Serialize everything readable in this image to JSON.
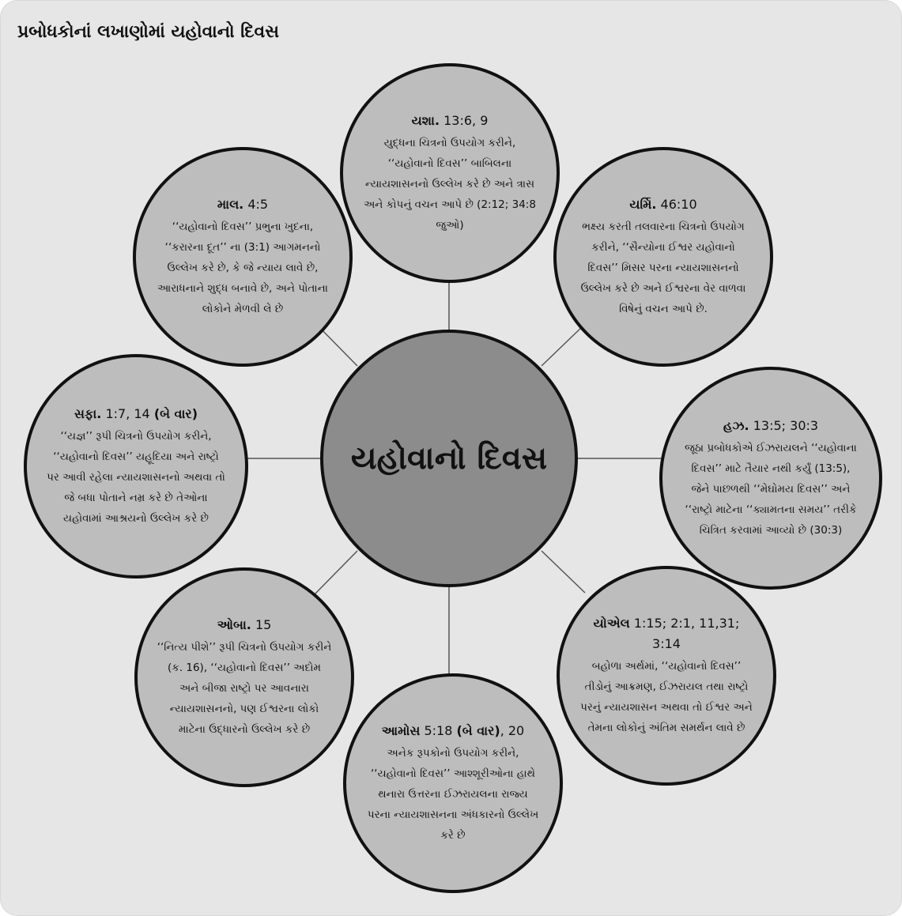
{
  "title": "પ્રબોધકોનાં લખાણોમાં યહોવાનો દિવસ",
  "center": {
    "label": "યહોવાનો દિવસ"
  },
  "nodes": [
    {
      "id": "isaiah",
      "book": "યશા.",
      "verses": "13:6, 9",
      "text": "યુદ્ધના ચિત્રનો ઉપયોગ કરીને, ‘‘યહોવાનો દિવસ’’ બાબિલના ન્યાયશાસનનો ઉલ્લેખ કરે છે અને ત્રાસ અને કોપનું વચન આપે છે (2:12; 34:8 જુઓ)"
    },
    {
      "id": "jeremiah",
      "book": "યર્મિ.",
      "verses": "46:10",
      "text": "ભક્ષ્ય કરતી તલવારના ચિત્રનો ઉપયોગ કરીને, ‘‘સૈન્યોના ઈશ્વર યહોવાનો દિવસ’’ મિસર પરના ન્યાયશાસનનો ઉલ્લેખ કરે છે અને ઈશ્વરના વેર વાળવા વિષેનું વચન આપે છે."
    },
    {
      "id": "ezekiel",
      "book": "હઝ.",
      "verses": "13:5; 30:3",
      "text": "જૂઠા પ્રબોધકોએ ઈઝરાયલને ‘‘યહોવાના દિવસ’’ માટે તૈયાર નથી કર્યું (13:5), જેને પાછળથી ‘‘મેઘોમય દિવસ’’ અને ‘‘રાષ્ટ્રો માટેના ‘‘ક્યામતના સમય’’ તરીકે ચિત્રિત કરવામાં આવ્યો છે (30:3)"
    },
    {
      "id": "joel",
      "book": "યોએલ",
      "verses": "1:15; 2:1, 11,31; 3:14",
      "text": "બહોળા અર્થમાં, ‘‘યહોવાનો દિવસ’’ તીડોનું આક્રમણ, ઈઝરાયલ તથા રાષ્ટ્રો પરનું ન્યાયશાસન અથવા તો ઈશ્વર અને તેમના લોકોનું અંતિમ સમર્થન લાવે છે"
    },
    {
      "id": "amos",
      "book": "આમોસ",
      "verses": "5:18",
      "emph": "(બે વાર)",
      "verses2": ", 20",
      "text": "અનેક રૂપકોનો ઉપયોગ કરીને, ‘‘યહોવાનો દિવસ’’ આશ્શૂરીઓના હાથે થનારા ઉત્તરના ઈઝરાયલના રાજ્ય પરના ન્યાયશાસનના અંધકારનો ઉલ્લેખ કરે છે"
    },
    {
      "id": "obadiah",
      "book": "ઓબા.",
      "verses": "15",
      "text": "‘‘નિત્ય પીશે’’ રૂપી ચિત્રનો ઉપયોગ કરીને (ક. 16), ‘‘યહોવાનો દિવસ’’ અદોમ અને બીજા રાષ્ટ્રો પર આવનારા ન્યાયશાસનનો, પણ ઈશ્વરના લોકો માટેના ઉદ્ધારનો ઉલ્લેખ કરે છે"
    },
    {
      "id": "zephaniah",
      "book": "સફા.",
      "verses": "1:7, 14",
      "emph": "(બે વાર)",
      "text": "‘‘યજ્ઞ’’ રૂપી ચિત્રનો ઉપયોગ કરીને, ‘‘યહોવાનો દિવસ’’ યહૂદિયા અને રાષ્ટ્રો પર આવી રહેલા ન્યાયશાસનનો અથવા તો જે બધા પોતાને નમ્ર કરે છે તેઓના યહોવામાં આશ્રયનો ઉલ્લેખ કરે છે"
    },
    {
      "id": "malachi",
      "book": "માલ.",
      "verses": "4:5",
      "text": "‘‘યહોવાનો દિવસ’’ પ્રભુના ખુદના, ‘‘કરારના દૂત’’ ના (3:1) આગમનનો ઉલ્લેખ કરે છે, કે જે ન્યાય લાવે છે, આરાધનાને શુદ્ધ બનાવે છે, અને પોતાના લોકોને મેળવી લે છે"
    }
  ]
}
